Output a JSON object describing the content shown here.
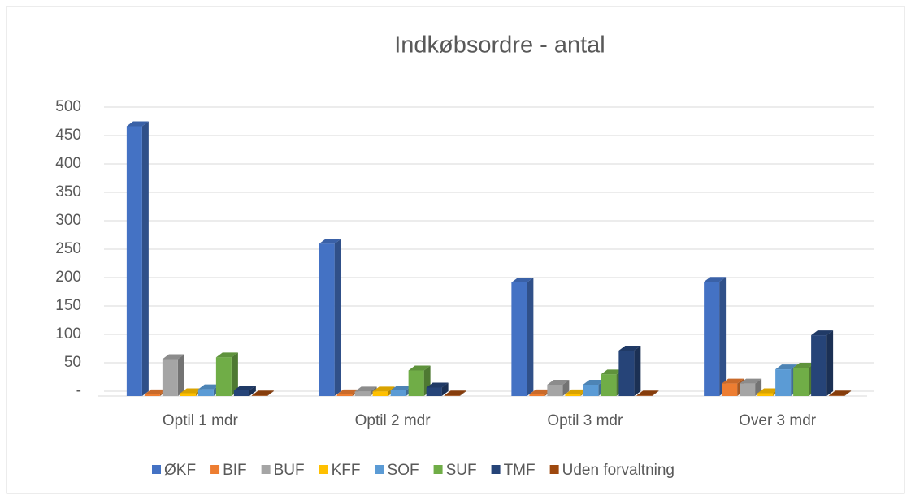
{
  "chart_data": {
    "type": "bar3d",
    "title": "Indkøbsordre - antal",
    "categories": [
      "Optil 1 mdr",
      "Optil 2 mdr",
      "Optil 3 mdr",
      "Over 3 mdr"
    ],
    "series": [
      {
        "name": "ØKF",
        "color": "#4472c4",
        "values": [
          475,
          268,
          200,
          201
        ]
      },
      {
        "name": "BIF",
        "color": "#ed7d31",
        "values": [
          3,
          3,
          3,
          22
        ]
      },
      {
        "name": "BUF",
        "color": "#a5a5a5",
        "values": [
          65,
          8,
          20,
          22
        ]
      },
      {
        "name": "KFF",
        "color": "#ffc000",
        "values": [
          5,
          8,
          3,
          5
        ]
      },
      {
        "name": "SOF",
        "color": "#5b9bd5",
        "values": [
          12,
          10,
          20,
          47
        ]
      },
      {
        "name": "SUF",
        "color": "#70ad47",
        "values": [
          68,
          45,
          38,
          50
        ]
      },
      {
        "name": "TMF",
        "color": "#264478",
        "values": [
          10,
          15,
          80,
          107
        ]
      },
      {
        "name": "Uden forvaltning",
        "color": "#9e480e",
        "values": [
          1,
          1,
          1,
          1
        ]
      }
    ],
    "ylim": [
      0,
      500
    ],
    "yticks": [
      {
        "value": 0,
        "label": "-"
      },
      50,
      100,
      150,
      200,
      250,
      300,
      350,
      400,
      450,
      500
    ],
    "grid": true,
    "legend": "bottom"
  }
}
